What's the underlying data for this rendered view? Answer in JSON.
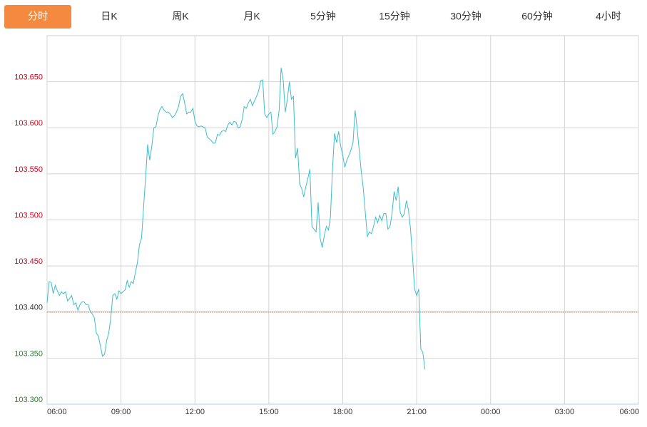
{
  "tabs": {
    "items": [
      "分时",
      "日K",
      "周K",
      "月K",
      "5分钟",
      "15分钟",
      "30分钟",
      "60分钟",
      "4小时"
    ],
    "selected": 0
  },
  "chart_data": {
    "type": "line",
    "x": [
      0,
      5,
      10,
      15,
      20,
      25,
      30,
      35,
      40,
      45,
      50,
      55,
      60,
      65,
      70,
      75,
      80,
      85,
      90,
      95,
      100,
      105,
      110,
      115,
      120,
      125,
      130,
      135,
      140,
      145,
      150,
      155,
      160,
      165,
      170,
      175,
      180,
      185,
      190,
      195,
      200,
      205,
      210,
      215,
      220,
      225,
      230,
      235,
      240,
      245,
      250,
      255,
      260,
      265,
      270,
      275,
      280,
      285,
      290,
      295,
      300,
      305,
      310,
      315,
      320,
      325,
      330,
      335,
      340,
      345,
      350,
      355,
      360,
      365,
      370,
      375,
      380,
      385,
      390,
      395,
      400,
      405,
      410,
      415,
      420,
      425,
      430,
      435,
      440,
      445,
      450,
      455,
      460,
      465,
      470,
      475,
      480,
      485,
      490,
      495,
      500,
      505,
      510,
      515,
      520,
      525,
      530,
      535,
      540,
      545,
      550,
      555,
      560,
      565,
      570,
      575,
      580,
      585,
      590,
      595,
      600,
      605,
      610,
      615,
      620,
      625,
      630,
      635,
      640,
      645,
      650,
      655,
      660,
      665,
      670,
      675,
      680,
      685,
      690,
      695,
      700,
      705,
      710,
      715,
      720,
      725,
      730,
      735,
      740,
      745,
      750,
      755,
      760,
      765,
      770,
      775,
      780,
      785,
      790,
      795,
      800,
      805,
      810,
      815,
      820,
      825,
      830,
      835,
      840,
      845,
      850,
      855,
      860,
      865,
      870,
      875,
      880,
      885,
      890,
      895,
      900,
      905,
      910,
      915,
      920
    ],
    "series": [
      {
        "color": "#3dbdcc",
        "values": [
          103.41,
          103.433,
          103.432,
          103.42,
          103.429,
          103.423,
          103.418,
          103.422,
          103.42,
          103.422,
          103.412,
          103.415,
          103.418,
          103.408,
          103.41,
          103.402,
          103.408,
          103.411,
          103.411,
          103.408,
          103.408,
          103.401,
          103.398,
          103.394,
          103.377,
          103.374,
          103.363,
          103.352,
          103.354,
          103.369,
          103.377,
          103.393,
          103.418,
          103.42,
          103.414,
          103.423,
          103.42,
          103.422,
          103.424,
          103.434,
          103.427,
          103.433,
          103.431,
          103.443,
          103.454,
          103.473,
          103.48,
          103.514,
          103.547,
          103.582,
          103.565,
          103.58,
          103.6,
          103.601,
          103.613,
          103.62,
          103.623,
          103.619,
          103.617,
          103.617,
          103.615,
          103.611,
          103.613,
          103.617,
          103.623,
          103.634,
          103.637,
          103.627,
          103.615,
          103.617,
          103.617,
          103.621,
          103.607,
          103.602,
          103.601,
          103.602,
          103.601,
          103.6,
          103.59,
          103.588,
          103.586,
          103.583,
          103.584,
          103.593,
          103.592,
          103.596,
          103.597,
          103.596,
          103.603,
          103.606,
          103.603,
          103.607,
          103.606,
          103.6,
          103.601,
          103.609,
          103.623,
          103.621,
          103.627,
          103.631,
          103.624,
          103.629,
          103.634,
          103.64,
          103.651,
          103.652,
          103.615,
          103.611,
          103.615,
          103.617,
          103.593,
          103.596,
          103.601,
          103.619,
          103.665,
          103.652,
          103.617,
          103.631,
          103.65,
          103.631,
          103.634,
          103.567,
          103.578,
          103.539,
          103.534,
          103.525,
          103.536,
          103.545,
          103.555,
          103.493,
          103.49,
          103.487,
          103.519,
          103.48,
          103.47,
          103.483,
          103.493,
          103.489,
          103.503,
          103.555,
          103.594,
          103.584,
          103.596,
          103.58,
          103.57,
          103.557,
          103.565,
          103.57,
          103.576,
          103.584,
          103.619,
          103.6,
          103.576,
          103.553,
          103.534,
          103.507,
          103.482,
          103.487,
          103.485,
          103.493,
          103.503,
          103.497,
          103.505,
          103.499,
          103.507,
          103.507,
          103.49,
          103.493,
          103.507,
          103.531,
          103.521,
          103.536,
          103.508,
          103.503,
          103.507,
          103.521,
          103.511,
          103.49,
          103.459,
          103.425,
          103.418,
          103.425,
          103.36,
          103.356,
          103.338
        ]
      }
    ],
    "base": 103.4,
    "base_color": "#e0855a",
    "up_color": "#d0021b",
    "down_color": "#2e7d32",
    "base_label_color": "#333333",
    "xlim": [
      0,
      1440
    ],
    "xticks": [
      {
        "value": 0,
        "label": "06:00"
      },
      {
        "value": 180,
        "label": "09:00"
      },
      {
        "value": 360,
        "label": "12:00"
      },
      {
        "value": 540,
        "label": "15:00"
      },
      {
        "value": 720,
        "label": "18:00"
      },
      {
        "value": 900,
        "label": "21:00"
      },
      {
        "value": 1080,
        "label": "00:00"
      },
      {
        "value": 1260,
        "label": "03:00"
      },
      {
        "value": 1440,
        "label": "06:00"
      }
    ],
    "ylim": [
      103.3,
      103.7
    ],
    "yticks": [
      {
        "value": 103.3,
        "label": "103.300"
      },
      {
        "value": 103.35,
        "label": "103.350"
      },
      {
        "value": 103.4,
        "label": "103.400"
      },
      {
        "value": 103.45,
        "label": "103.450"
      },
      {
        "value": 103.5,
        "label": "103.500"
      },
      {
        "value": 103.55,
        "label": "103.550"
      },
      {
        "value": 103.6,
        "label": "103.600"
      },
      {
        "value": 103.65,
        "label": "103.650"
      }
    ],
    "grid": true
  }
}
